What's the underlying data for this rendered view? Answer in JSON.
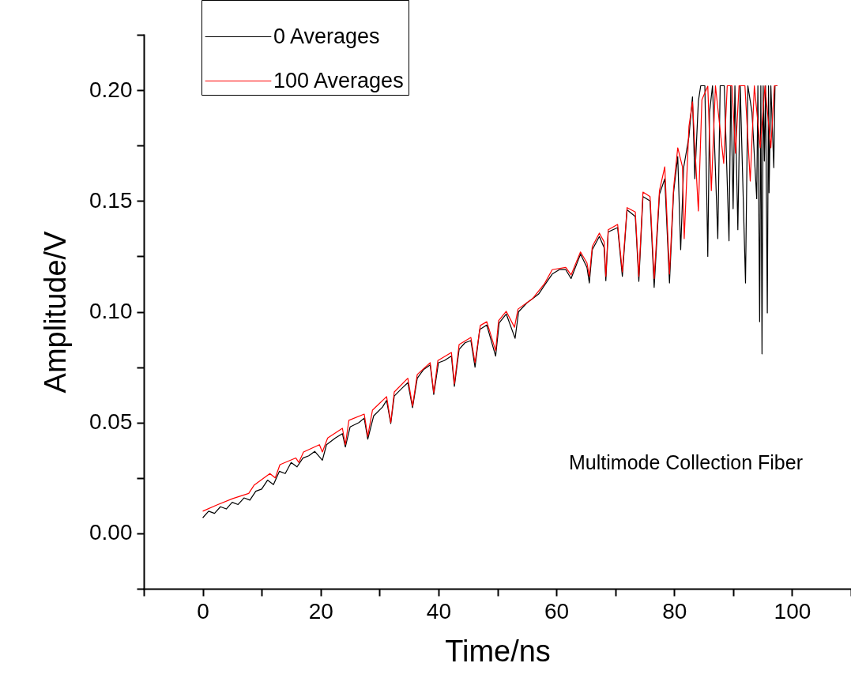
{
  "chart_data": {
    "type": "line",
    "xlabel": "Time/ns",
    "ylabel": "Amplitude/V",
    "legend": "top left",
    "xlim": [
      -10,
      110
    ],
    "xticks": [
      {
        "value": -10,
        "label": null
      },
      0,
      {
        "value": 10,
        "label": null
      },
      20,
      {
        "value": 30,
        "label": null
      },
      40,
      {
        "value": 50,
        "label": null
      },
      60,
      {
        "value": 70,
        "label": null
      },
      80,
      {
        "value": 90,
        "label": null
      },
      100,
      {
        "value": 110,
        "label": null
      }
    ],
    "ylim": [
      -0.025,
      0.225
    ],
    "yticks": [
      {
        "value": -0.025,
        "label": null
      },
      {
        "value": 0,
        "label": "0.00"
      },
      {
        "value": 0.025,
        "label": null
      },
      {
        "value": 0.05,
        "label": "0.05"
      },
      {
        "value": 0.075,
        "label": null
      },
      {
        "value": 0.1,
        "label": "0.10"
      },
      {
        "value": 0.125,
        "label": null
      },
      {
        "value": 0.15,
        "label": "0.15"
      },
      {
        "value": 0.175,
        "label": null
      },
      {
        "value": 0.2,
        "label": "0.20"
      },
      {
        "value": 0.225,
        "label": null
      }
    ],
    "annotations": [
      "Multimode Collection Fiber"
    ],
    "series": [
      {
        "name": "0 Averages",
        "color": "#000000",
        "x": [
          0,
          1,
          2,
          3,
          4,
          5,
          6,
          7,
          8,
          9,
          10,
          11,
          12,
          13,
          14,
          15,
          16,
          17,
          18,
          19,
          20.3,
          21,
          22.5,
          23.7,
          24.2,
          25,
          26.5,
          27.4,
          28,
          29,
          30.5,
          31.2,
          31.9,
          32.5,
          34,
          34.8,
          35.6,
          36.4,
          37.5,
          38.6,
          39.2,
          40,
          41,
          42.2,
          42.7,
          43.5,
          44.5,
          45.5,
          46.2,
          47,
          48.2,
          49.7,
          50.3,
          51.5,
          53,
          53.6,
          55,
          56,
          57,
          58,
          59.3,
          60.5,
          61.6,
          62.5,
          64.1,
          65.2,
          65.6,
          66.1,
          67.3,
          68.1,
          68.4,
          68.8,
          70.4,
          71.2,
          72,
          73.4,
          74,
          74.7,
          75.9,
          76.6,
          77.5,
          78.4,
          79.2,
          79.9,
          80.6,
          81.1,
          81.6,
          82.5,
          83.1,
          83.5,
          84.1,
          84.5,
          85.2,
          85.7,
          86,
          86.5,
          87.4,
          87.8,
          88.5,
          89.3,
          89.6,
          90,
          90.3,
          90.8,
          91.2,
          92.1,
          92.5,
          93.2,
          94,
          94.2,
          94.5,
          94.7,
          94.9,
          95.1,
          95.3,
          95.5,
          95.8,
          96,
          96.1,
          96.4,
          96.9,
          97.1,
          97.5
        ],
        "values": [
          0.007,
          0.01,
          0.009,
          0.012,
          0.011,
          0.014,
          0.013,
          0.016,
          0.015,
          0.019,
          0.02,
          0.024,
          0.022,
          0.028,
          0.027,
          0.032,
          0.03,
          0.034,
          0.035,
          0.037,
          0.033,
          0.04,
          0.043,
          0.045,
          0.039,
          0.048,
          0.05,
          0.052,
          0.0425,
          0.053,
          0.057,
          0.06,
          0.0496,
          0.062,
          0.066,
          0.068,
          0.0567,
          0.07,
          0.074,
          0.076,
          0.0627,
          0.077,
          0.078,
          0.08,
          0.0663,
          0.083,
          0.086,
          0.087,
          0.075,
          0.092,
          0.094,
          0.08,
          0.095,
          0.099,
          0.088,
          0.1,
          0.104,
          0.106,
          0.108,
          0.112,
          0.117,
          0.119,
          0.119,
          0.115,
          0.126,
          0.12,
          0.113,
          0.128,
          0.134,
          0.129,
          0.114,
          0.136,
          0.138,
          0.116,
          0.146,
          0.143,
          0.1137,
          0.152,
          0.15,
          0.111,
          0.153,
          0.16,
          0.113,
          0.154,
          0.17,
          0.128,
          0.165,
          0.179,
          0.197,
          0.16,
          0.195,
          0.202,
          0.202,
          0.125,
          0.19,
          0.202,
          0.133,
          0.202,
          0.202,
          0.132,
          0.202,
          0.1465,
          0.202,
          0.137,
          0.202,
          0.113,
          0.202,
          0.19,
          0.151,
          0.202,
          0.0955,
          0.202,
          0.081,
          0.202,
          0.168,
          0.202,
          0.0995,
          0.202,
          0.1537,
          0.202,
          0.165,
          0.202,
          0.202
        ]
      },
      {
        "name": "100 Averages",
        "color": "#ff0000",
        "x": [
          0,
          2.4,
          5.1,
          7.8,
          8.7,
          11.4,
          12.3,
          13.1,
          15.8,
          16.3,
          17.1,
          19.8,
          20.3,
          21.2,
          23.7,
          24.2,
          24.8,
          27.4,
          28,
          28.8,
          31.2,
          31.9,
          32.5,
          34.8,
          35.6,
          36.4,
          38.6,
          39.2,
          39.9,
          42.2,
          42.7,
          43.5,
          45.5,
          46.2,
          47.1,
          48.2,
          49.7,
          50.2,
          51.5,
          52.9,
          53.5,
          56,
          58,
          59.3,
          61.6,
          62.5,
          64.1,
          65.2,
          65.6,
          66.1,
          67.3,
          68.1,
          68.4,
          68.8,
          70.4,
          71.2,
          72,
          73.4,
          74,
          74.7,
          75.9,
          76.6,
          77.5,
          78.4,
          79.2,
          79.9,
          80.6,
          81.4,
          81.7,
          82.5,
          83.1,
          84.1,
          84.7,
          85.7,
          86.3,
          87,
          88.4,
          89,
          89.8,
          90.4,
          91,
          92,
          92.9,
          93.6,
          94.6,
          95.4,
          96.4,
          97,
          97.5
        ],
        "values": [
          0.01,
          0.0128,
          0.0157,
          0.018,
          0.0217,
          0.027,
          0.025,
          0.031,
          0.034,
          0.032,
          0.0367,
          0.04,
          0.0367,
          0.043,
          0.0474,
          0.04,
          0.051,
          0.0538,
          0.0438,
          0.0556,
          0.0617,
          0.05,
          0.0638,
          0.07,
          0.0574,
          0.0717,
          0.077,
          0.0635,
          0.078,
          0.0816,
          0.0674,
          0.0852,
          0.0884,
          0.077,
          0.0938,
          0.0955,
          0.0824,
          0.0959,
          0.1002,
          0.093,
          0.1012,
          0.106,
          0.1127,
          0.119,
          0.12,
          0.1166,
          0.127,
          0.122,
          0.116,
          0.1294,
          0.1355,
          0.1316,
          0.116,
          0.137,
          0.1394,
          0.118,
          0.147,
          0.145,
          0.116,
          0.154,
          0.152,
          0.115,
          0.1547,
          0.1654,
          0.117,
          0.156,
          0.174,
          0.1654,
          0.133,
          0.1836,
          0.1947,
          0.1455,
          0.1957,
          0.2018,
          0.1547,
          0.202,
          0.167,
          0.202,
          0.202,
          0.1715,
          0.202,
          0.202,
          0.159,
          0.202,
          0.174,
          0.202,
          0.174,
          0.202,
          0.202
        ]
      }
    ]
  }
}
